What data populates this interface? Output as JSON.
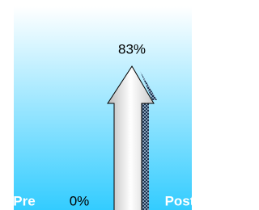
{
  "chart_data": {
    "type": "arrow",
    "categories": [
      "Pre",
      "Post"
    ],
    "values": [
      0,
      83
    ],
    "value_labels": [
      "0%",
      "83%"
    ],
    "ylim": [
      0,
      100
    ],
    "color": "#d8d8d8"
  }
}
